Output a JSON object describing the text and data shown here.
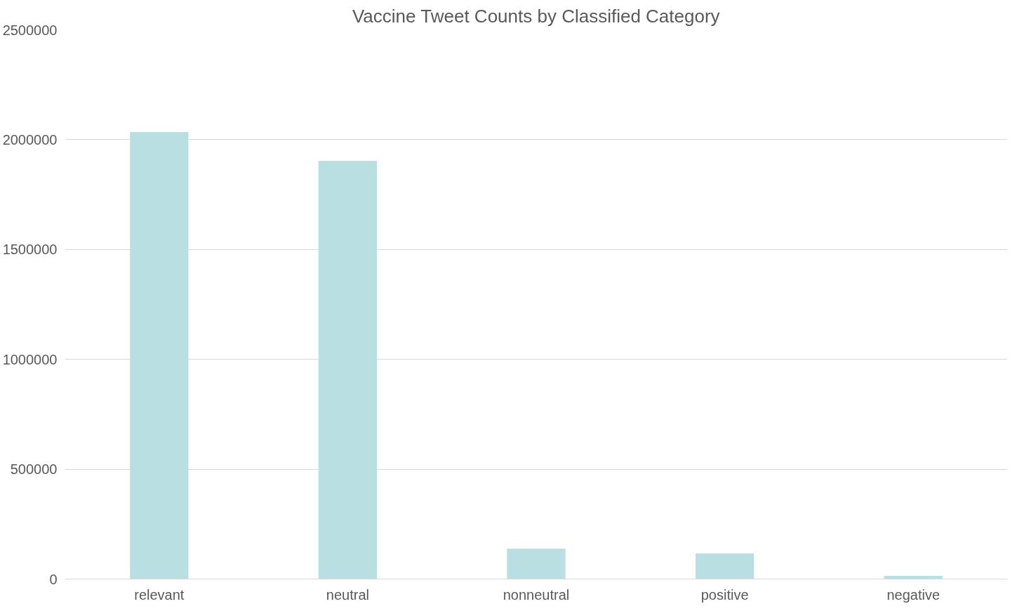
{
  "chart_data": {
    "type": "bar",
    "title": "Vaccine Tweet Counts by Classified Category",
    "categories": [
      "relevant",
      "neutral",
      "nonneutral",
      "positive",
      "negative"
    ],
    "values": [
      2035000,
      1904000,
      138000,
      117000,
      14000
    ],
    "color": "#b9dfe2",
    "ylim": [
      0,
      2500000
    ],
    "yticks": [
      0,
      500000,
      1000000,
      1500000,
      2000000,
      2500000
    ],
    "grid": "y"
  }
}
